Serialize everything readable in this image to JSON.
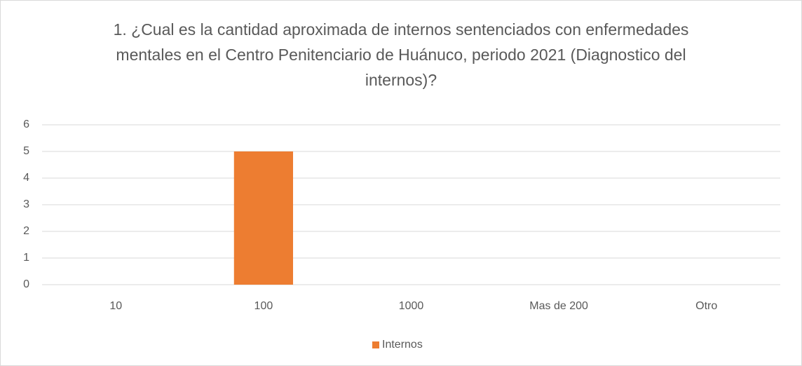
{
  "chart_data": {
    "type": "bar",
    "title": "1. ¿Cual es la cantidad aproximada de internos sentenciados con enfermedades mentales en el Centro Penitenciario de Huánuco, periodo 2021 (Diagnostico del internos)?",
    "categories": [
      "10",
      "100",
      "1000",
      "Mas de 200",
      "Otro"
    ],
    "series": [
      {
        "name": "Internos",
        "color": "#ed7d31",
        "values": [
          0,
          5,
          0,
          0,
          0
        ]
      }
    ],
    "ylim": [
      0,
      6
    ],
    "yticks": [
      0,
      1,
      2,
      3,
      4,
      5,
      6
    ],
    "grid": true,
    "legend": "bottom"
  }
}
